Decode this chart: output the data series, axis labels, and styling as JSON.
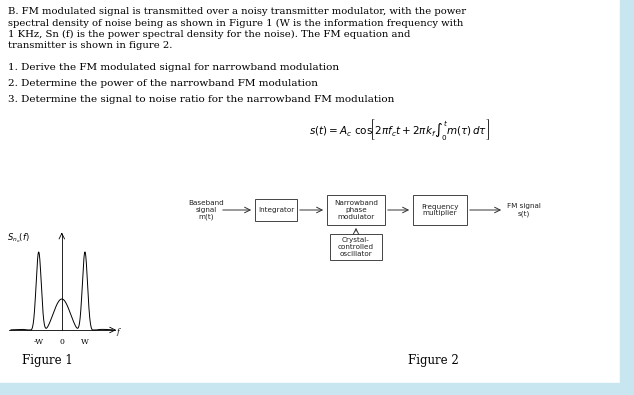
{
  "bg_color": "#ffffff",
  "light_blue": "#c8e6f0",
  "text_color": "#000000",
  "gray_text": "#222222",
  "title_lines": [
    "B. FM modulated signal is transmitted over a noisy transmitter modulator, with the power",
    "spectral density of noise being as shown in Figure 1 (W is the information frequency with",
    "1 KHz, Sn (f) is the power spectral density for the noise). The FM equation and",
    "transmitter is shown in figure 2."
  ],
  "item1": "1. Derive the FM modulated signal for narrowband modulation",
  "item2": "2. Determine the power of the narrowband FM modulation",
  "item3": "3. Determine the signal to noise ratio for the narrowband FM modulation",
  "figure1_label": "Figure 1",
  "figure2_label": "Figure 2",
  "fig1_xlabel_neg": "-W",
  "fig1_xlabel_zero": "0",
  "fig1_xlabel_pos": "W",
  "fig1_xlabel_f": "f",
  "box1_label": "Baseband\nsignal\nm(t)",
  "box2_label": "Integrator",
  "box3_label": "Narrowband\nphase\nmodulator",
  "box4_label": "Frequency\nmultiplier",
  "box5_label": "Crystal-\ncontrolled\noscillator",
  "fm_signal_label": "FM signal\ns(t)",
  "sn_label": "$S_{n_o}(f)$",
  "title_fontsize": 7.2,
  "item_fontsize": 7.5,
  "eq_fontsize": 7.5,
  "fig_label_fontsize": 8.5,
  "block_fontsize": 5.2,
  "axis_label_fontsize": 5.5,
  "sn_fontsize": 6.0
}
